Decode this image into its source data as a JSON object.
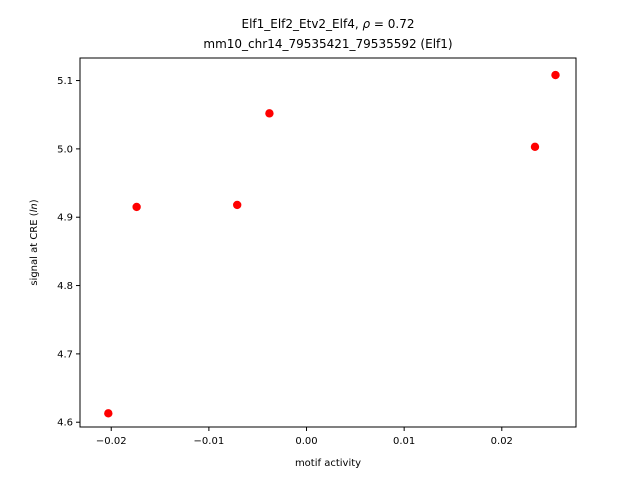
{
  "chart_data": {
    "type": "scatter",
    "title_line1_prefix": "Elf1_Elf2_Etv2_Elf4, ",
    "title_line1_rho": "ρ",
    "title_line1_suffix": " = 0.72",
    "title_line2": "mm10_chr14_79535421_79535592 (Elf1)",
    "xlabel": "motif activity",
    "ylabel_prefix": "signal at CRE (",
    "ylabel_italic": "ln",
    "ylabel_suffix": ")",
    "xlim": [
      -0.0232,
      0.0276
    ],
    "ylim": [
      4.593,
      5.133
    ],
    "xticks": [
      -0.02,
      -0.01,
      0.0,
      0.01,
      0.02
    ],
    "xtick_labels": [
      "−0.02",
      "−0.01",
      "0.00",
      "0.01",
      "0.02"
    ],
    "yticks": [
      4.6,
      4.7,
      4.8,
      4.9,
      5.0,
      5.1
    ],
    "ytick_labels": [
      "4.6",
      "4.7",
      "4.8",
      "4.9",
      "5.0",
      "5.1"
    ],
    "points": [
      {
        "x": -0.0203,
        "y": 4.613
      },
      {
        "x": -0.0174,
        "y": 4.915
      },
      {
        "x": -0.0071,
        "y": 4.918
      },
      {
        "x": -0.0038,
        "y": 5.052
      },
      {
        "x": 0.0234,
        "y": 5.003
      },
      {
        "x": 0.0255,
        "y": 5.108
      }
    ],
    "marker_color": "#ff0000",
    "grid": false
  }
}
